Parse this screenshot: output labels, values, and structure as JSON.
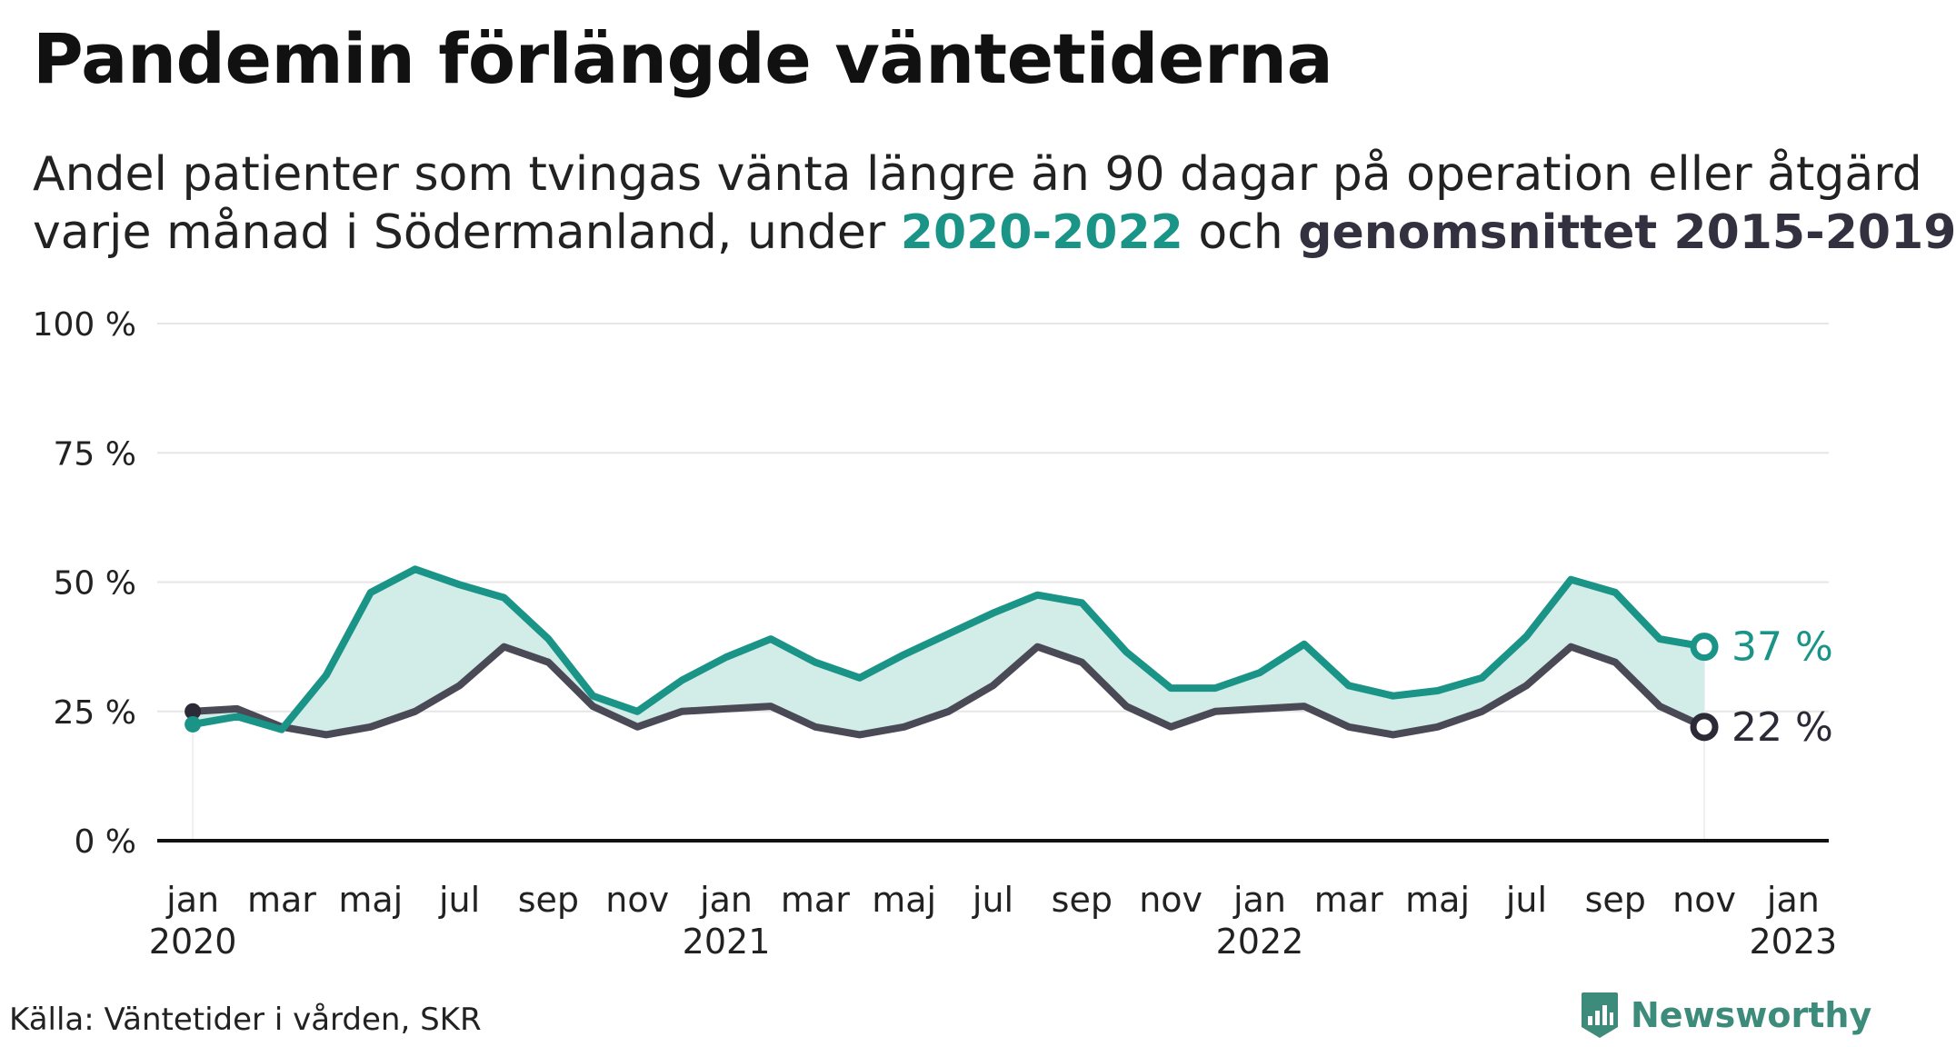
{
  "title": "Pandemin förlängde väntetiderna",
  "subtitle": {
    "line1": "Andel patienter som tvingas vänta längre än 90 dagar på operation eller åtgärd",
    "line2_prefix": "varje månad i Södermanland, under ",
    "series1_label": "2020-2022",
    "mid": " och ",
    "series2_label": "genomsnittet 2015-2019"
  },
  "source": "Källa: Väntetider i vården, SKR",
  "brand": {
    "name": "Newsworthy",
    "icon": "newsworthy-logo-icon"
  },
  "colors": {
    "series_2020_2022": "#1b9488",
    "series_avg": "#4a4956",
    "fill": "#d2ece8",
    "grid": "#e6e6e6"
  },
  "chart_data": {
    "type": "line",
    "ylim": [
      0,
      100
    ],
    "y_ticks": [
      0,
      25,
      50,
      75,
      100
    ],
    "y_tick_labels": [
      "0 %",
      "25 %",
      "50 %",
      "75 %",
      "100 %"
    ],
    "x_tick_labels": [
      {
        "month": "jan",
        "year": "2020",
        "index": 0
      },
      {
        "month": "mar",
        "year": "",
        "index": 2
      },
      {
        "month": "maj",
        "year": "",
        "index": 4
      },
      {
        "month": "jul",
        "year": "",
        "index": 6
      },
      {
        "month": "sep",
        "year": "",
        "index": 8
      },
      {
        "month": "nov",
        "year": "",
        "index": 10
      },
      {
        "month": "jan",
        "year": "2021",
        "index": 12
      },
      {
        "month": "mar",
        "year": "",
        "index": 14
      },
      {
        "month": "maj",
        "year": "",
        "index": 16
      },
      {
        "month": "jul",
        "year": "",
        "index": 18
      },
      {
        "month": "sep",
        "year": "",
        "index": 20
      },
      {
        "month": "nov",
        "year": "",
        "index": 22
      },
      {
        "month": "jan",
        "year": "2022",
        "index": 24
      },
      {
        "month": "mar",
        "year": "",
        "index": 26
      },
      {
        "month": "maj",
        "year": "",
        "index": 28
      },
      {
        "month": "jul",
        "year": "",
        "index": 30
      },
      {
        "month": "sep",
        "year": "",
        "index": 32
      },
      {
        "month": "nov",
        "year": "",
        "index": 34
      },
      {
        "month": "jan",
        "year": "2023",
        "index": 36
      }
    ],
    "x_range": [
      -0.8,
      36.8
    ],
    "series": [
      {
        "name": "2020-2022",
        "values": [
          22.5,
          24,
          21.5,
          32,
          48,
          52.5,
          49.5,
          47,
          39,
          28,
          25,
          31,
          35.5,
          39,
          34.5,
          31.5,
          36,
          40,
          44,
          47.5,
          46,
          36.5,
          29.5,
          29.5,
          32.5,
          38,
          30,
          28,
          29,
          31.5,
          39.5,
          50.5,
          48,
          39,
          37.5
        ],
        "end_label": "37 %"
      },
      {
        "name": "genomsnittet 2015-2019",
        "values": [
          25,
          25.5,
          22,
          20.5,
          22,
          25,
          30,
          37.5,
          34.5,
          26,
          22,
          25,
          25.5,
          26,
          22,
          20.5,
          22,
          25,
          30,
          37.5,
          34.5,
          26,
          22,
          25,
          25.5,
          26,
          22,
          20.5,
          22,
          25,
          30,
          37.5,
          34.5,
          26,
          22
        ],
        "end_label": "22 %"
      }
    ]
  }
}
